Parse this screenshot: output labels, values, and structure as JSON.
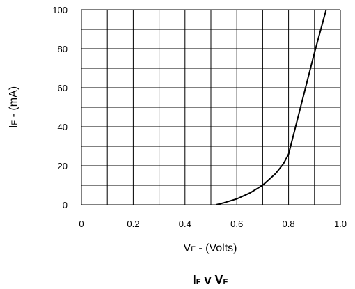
{
  "chart_data": {
    "type": "line",
    "title": {
      "main_a": "I",
      "sub_a": "F",
      "join": " v ",
      "main_b": "V",
      "sub_b": "F"
    },
    "xlabel": {
      "main": "V",
      "sub": "F",
      "rest": " - (Volts)"
    },
    "ylabel": {
      "main": "I",
      "sub": "F",
      "rest": " - (mA)"
    },
    "xlim": [
      0,
      1.0
    ],
    "ylim": [
      0,
      100
    ],
    "x_ticks": [
      "0",
      "0.2",
      "0.4",
      "0.6",
      "0.8",
      "1.0"
    ],
    "y_ticks": [
      "0",
      "20",
      "40",
      "60",
      "80",
      "100"
    ],
    "x_grid_step": 0.1,
    "y_grid_step": 10,
    "grid": true,
    "series": [
      {
        "x": [
          0.52,
          0.55,
          0.6,
          0.65,
          0.7,
          0.75,
          0.78,
          0.8,
          0.85,
          0.9,
          0.945
        ],
        "y": [
          0,
          1,
          3,
          6,
          10,
          16,
          21,
          26,
          52,
          78,
          100
        ]
      }
    ],
    "colors": {
      "line": "#000000",
      "grid": "#000000"
    }
  }
}
